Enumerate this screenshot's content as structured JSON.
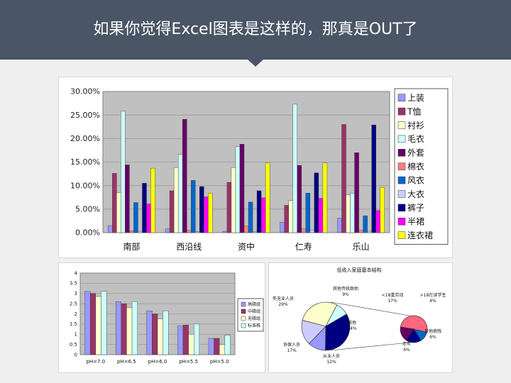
{
  "header": {
    "title": "如果你觉得Excel图表是这样的，那真是OUT了",
    "bg": "#4a5566"
  },
  "chart_data": [
    {
      "type": "bar",
      "categories": [
        "南部",
        "西沿线",
        "资中",
        "仁寿",
        "乐山"
      ],
      "ylim": [
        0,
        30
      ],
      "yticks": [
        "0.00%",
        "5.00%",
        "10.00%",
        "15.00%",
        "20.00%",
        "25.00%",
        "30.00%"
      ],
      "grid": true,
      "legend_position": "right",
      "series": [
        {
          "name": "上装",
          "color": "#9999ff",
          "values": [
            1.5,
            0.8,
            0.3,
            2.2,
            3.1
          ]
        },
        {
          "name": "T恤",
          "color": "#993366",
          "values": [
            12.6,
            8.9,
            10.7,
            5.8,
            23.0
          ]
        },
        {
          "name": "衬衫",
          "color": "#ffffcc",
          "values": [
            8.5,
            13.8,
            13.8,
            6.8,
            8.0
          ]
        },
        {
          "name": "毛衣",
          "color": "#ccffff",
          "values": [
            25.8,
            16.6,
            18.3,
            27.3,
            8.4
          ]
        },
        {
          "name": "外套",
          "color": "#660066",
          "values": [
            14.4,
            24.1,
            18.8,
            14.3,
            17.0
          ]
        },
        {
          "name": "棉衣",
          "color": "#ff8080",
          "values": [
            0.4,
            0.5,
            1.4,
            0.8,
            0.5
          ]
        },
        {
          "name": "风衣",
          "color": "#0066cc",
          "values": [
            6.4,
            11.1,
            6.5,
            8.4,
            3.6
          ]
        },
        {
          "name": "大衣",
          "color": "#ccccff",
          "values": [
            0.3,
            0.2,
            0.2,
            0.5,
            0.3
          ]
        },
        {
          "name": "裤子",
          "color": "#000080",
          "values": [
            10.5,
            9.8,
            8.9,
            12.7,
            22.9
          ]
        },
        {
          "name": "半裙",
          "color": "#ff00ff",
          "values": [
            6.1,
            7.6,
            7.4,
            7.3,
            4.7
          ]
        },
        {
          "name": "连衣裙",
          "color": "#ffff00",
          "values": [
            13.7,
            8.4,
            14.8,
            14.8,
            9.6
          ]
        }
      ]
    },
    {
      "type": "bar",
      "categories": [
        "pH=7.0",
        "pH=6.5",
        "pH=6.0",
        "pH=5.5",
        "pH=5.0"
      ],
      "ylim": [
        0,
        4
      ],
      "yticks": [
        "0",
        "0.5",
        "1",
        "1.5",
        "2",
        "2.5",
        "3",
        "3.5",
        "4"
      ],
      "grid": true,
      "legend_position": "right",
      "series": [
        {
          "name": "高磷组",
          "color": "#9999ff",
          "values": [
            3.1,
            2.6,
            2.15,
            1.4,
            0.8
          ]
        },
        {
          "name": "中磷组",
          "color": "#993366",
          "values": [
            3.0,
            2.5,
            2.0,
            1.45,
            0.8
          ]
        },
        {
          "name": "无磷组",
          "color": "#ffffcc",
          "values": [
            2.85,
            2.3,
            1.75,
            1.0,
            0.5
          ]
        },
        {
          "name": "标准株",
          "color": "#ccffff",
          "values": [
            3.1,
            2.6,
            2.15,
            1.5,
            0.95
          ]
        }
      ]
    },
    {
      "type": "pie",
      "title": "低收入家庭基本结构",
      "slices": [
        {
          "label": "失无业人员",
          "pct": "29%",
          "value": 29,
          "color": "#ffffcc"
        },
        {
          "label": "其他传统致助",
          "pct": "9%",
          "value": 9,
          "color": "#ccffff"
        },
        {
          "label": "其他",
          "pct": "34%",
          "value": 34,
          "color": "#000080"
        },
        {
          "label": "从业人员",
          "pct": "12%",
          "value": 12,
          "color": "#9999ff"
        },
        {
          "label": "协保人员",
          "pct": "17%",
          "value": 17,
          "color": "#ccccff"
        }
      ],
      "subpie": [
        {
          "label": "<18重劳动",
          "pct": "17%",
          "value": 17,
          "color": "#ff6680"
        },
        {
          "label": ">18在读学生",
          "pct": "4%",
          "value": 4,
          "color": "#0066cc"
        },
        {
          "label": "其他病残",
          "pct": "6%",
          "value": 6,
          "color": "#000080"
        },
        {
          "label": "老年",
          "pct": "6%",
          "value": 6,
          "color": "#660066"
        }
      ]
    }
  ]
}
